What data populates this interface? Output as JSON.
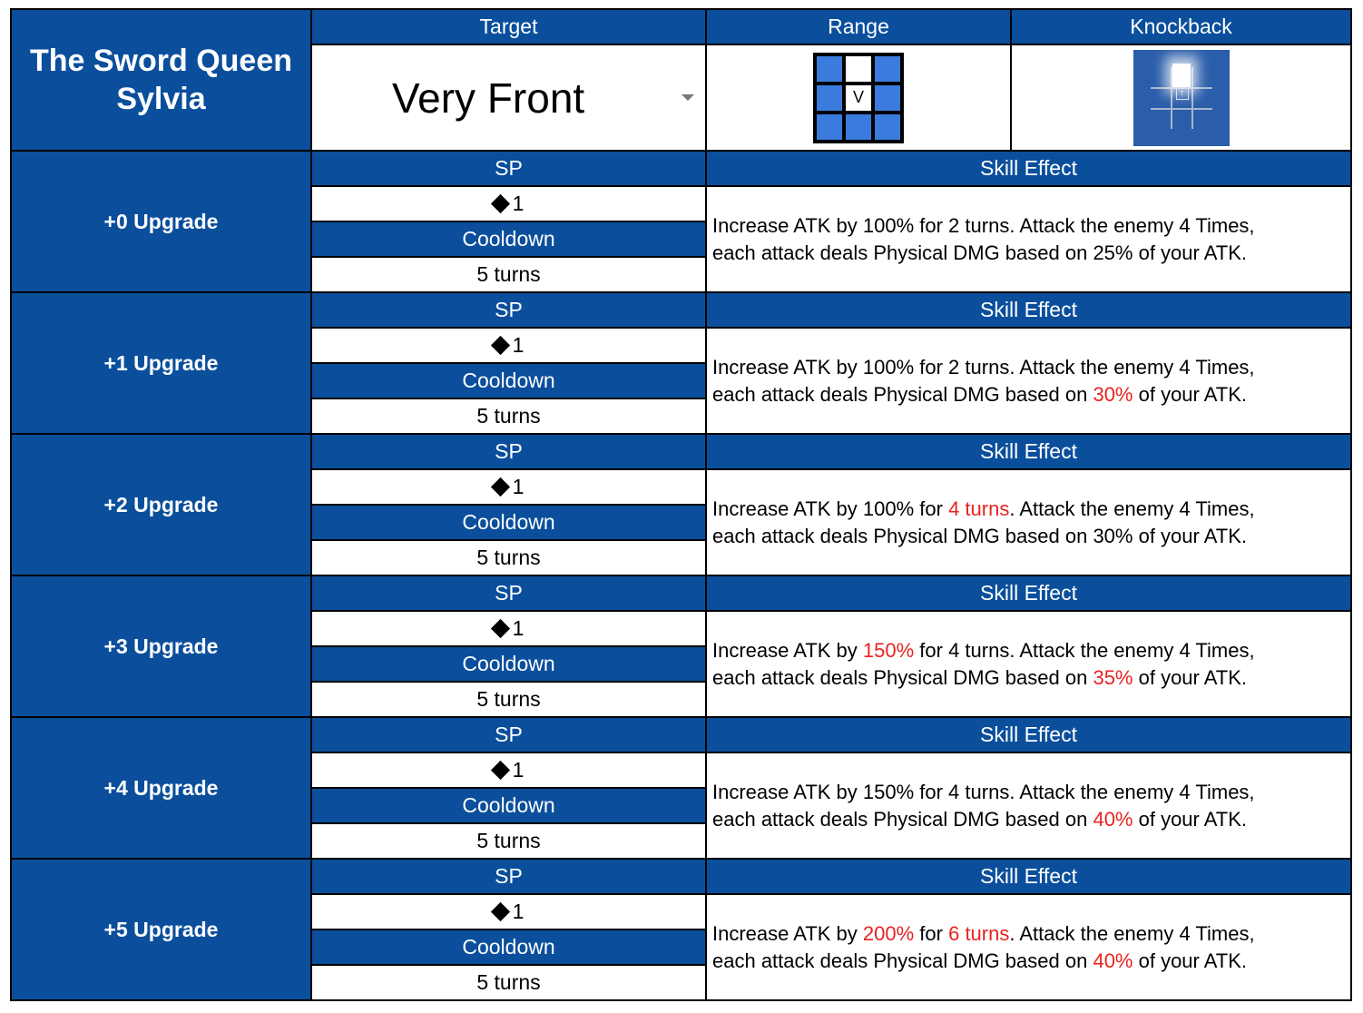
{
  "header": {
    "character_name_line1": "The Sword Queen",
    "character_name_line2": "Sylvia",
    "target_label": "Target",
    "range_label": "Range",
    "knockback_label": "Knockback",
    "target_value": "Very Front",
    "range_center_mark": "V"
  },
  "colors": {
    "header_blue": "#0b4f9c",
    "highlight_red": "#e8231f",
    "range_blue": "#3b7bdd",
    "knockback_bg": "#2a5daa"
  },
  "labels": {
    "sp": "SP",
    "cooldown": "Cooldown",
    "skill_effect": "Skill Effect"
  },
  "upgrades": [
    {
      "name": "+0 Upgrade",
      "sp": "1",
      "cooldown": "5 turns",
      "effect": [
        {
          "t": "Increase ATK by 100% for 2 turns. Attack the enemy 4 Times,",
          "hl": false
        },
        {
          "t": "each attack deals Physical DMG based on 25% of your ATK.",
          "hl": false,
          "br": true
        }
      ]
    },
    {
      "name": "+1 Upgrade",
      "sp": "1",
      "cooldown": "5 turns",
      "effect": [
        {
          "t": "Increase ATK by 100% for 2 turns. Attack the enemy 4 Times,",
          "hl": false
        },
        {
          "t": "each attack deals Physical DMG based on ",
          "hl": false,
          "br": true
        },
        {
          "t": "30%",
          "hl": true
        },
        {
          "t": " of your ATK.",
          "hl": false
        }
      ]
    },
    {
      "name": "+2 Upgrade",
      "sp": "1",
      "cooldown": "5 turns",
      "effect": [
        {
          "t": "Increase ATK by 100% for ",
          "hl": false
        },
        {
          "t": "4 turns",
          "hl": true
        },
        {
          "t": ". Attack the enemy 4 Times,",
          "hl": false
        },
        {
          "t": "each attack deals Physical DMG based on 30% of your ATK.",
          "hl": false,
          "br": true
        }
      ]
    },
    {
      "name": "+3 Upgrade",
      "sp": "1",
      "cooldown": "5 turns",
      "effect": [
        {
          "t": "Increase ATK by ",
          "hl": false
        },
        {
          "t": "150%",
          "hl": true
        },
        {
          "t": " for 4 turns. Attack the enemy 4 Times,",
          "hl": false
        },
        {
          "t": "each attack deals Physical DMG based on ",
          "hl": false,
          "br": true
        },
        {
          "t": "35%",
          "hl": true
        },
        {
          "t": " of your ATK.",
          "hl": false
        }
      ]
    },
    {
      "name": "+4 Upgrade",
      "sp": "1",
      "cooldown": "5 turns",
      "effect": [
        {
          "t": "Increase ATK by 150% for 4 turns. Attack the enemy 4 Times,",
          "hl": false
        },
        {
          "t": "each attack deals Physical DMG based on ",
          "hl": false,
          "br": true
        },
        {
          "t": "40%",
          "hl": true
        },
        {
          "t": " of your ATK.",
          "hl": false
        }
      ]
    },
    {
      "name": "+5 Upgrade",
      "sp": "1",
      "cooldown": "5 turns",
      "effect": [
        {
          "t": "Increase ATK by ",
          "hl": false
        },
        {
          "t": "200%",
          "hl": true
        },
        {
          "t": " for ",
          "hl": false
        },
        {
          "t": "6 turns",
          "hl": true
        },
        {
          "t": ". Attack the enemy 4 Times,",
          "hl": false
        },
        {
          "t": "each attack deals Physical DMG based on ",
          "hl": false,
          "br": true
        },
        {
          "t": "40%",
          "hl": true
        },
        {
          "t": " of your ATK.",
          "hl": false
        }
      ]
    }
  ]
}
